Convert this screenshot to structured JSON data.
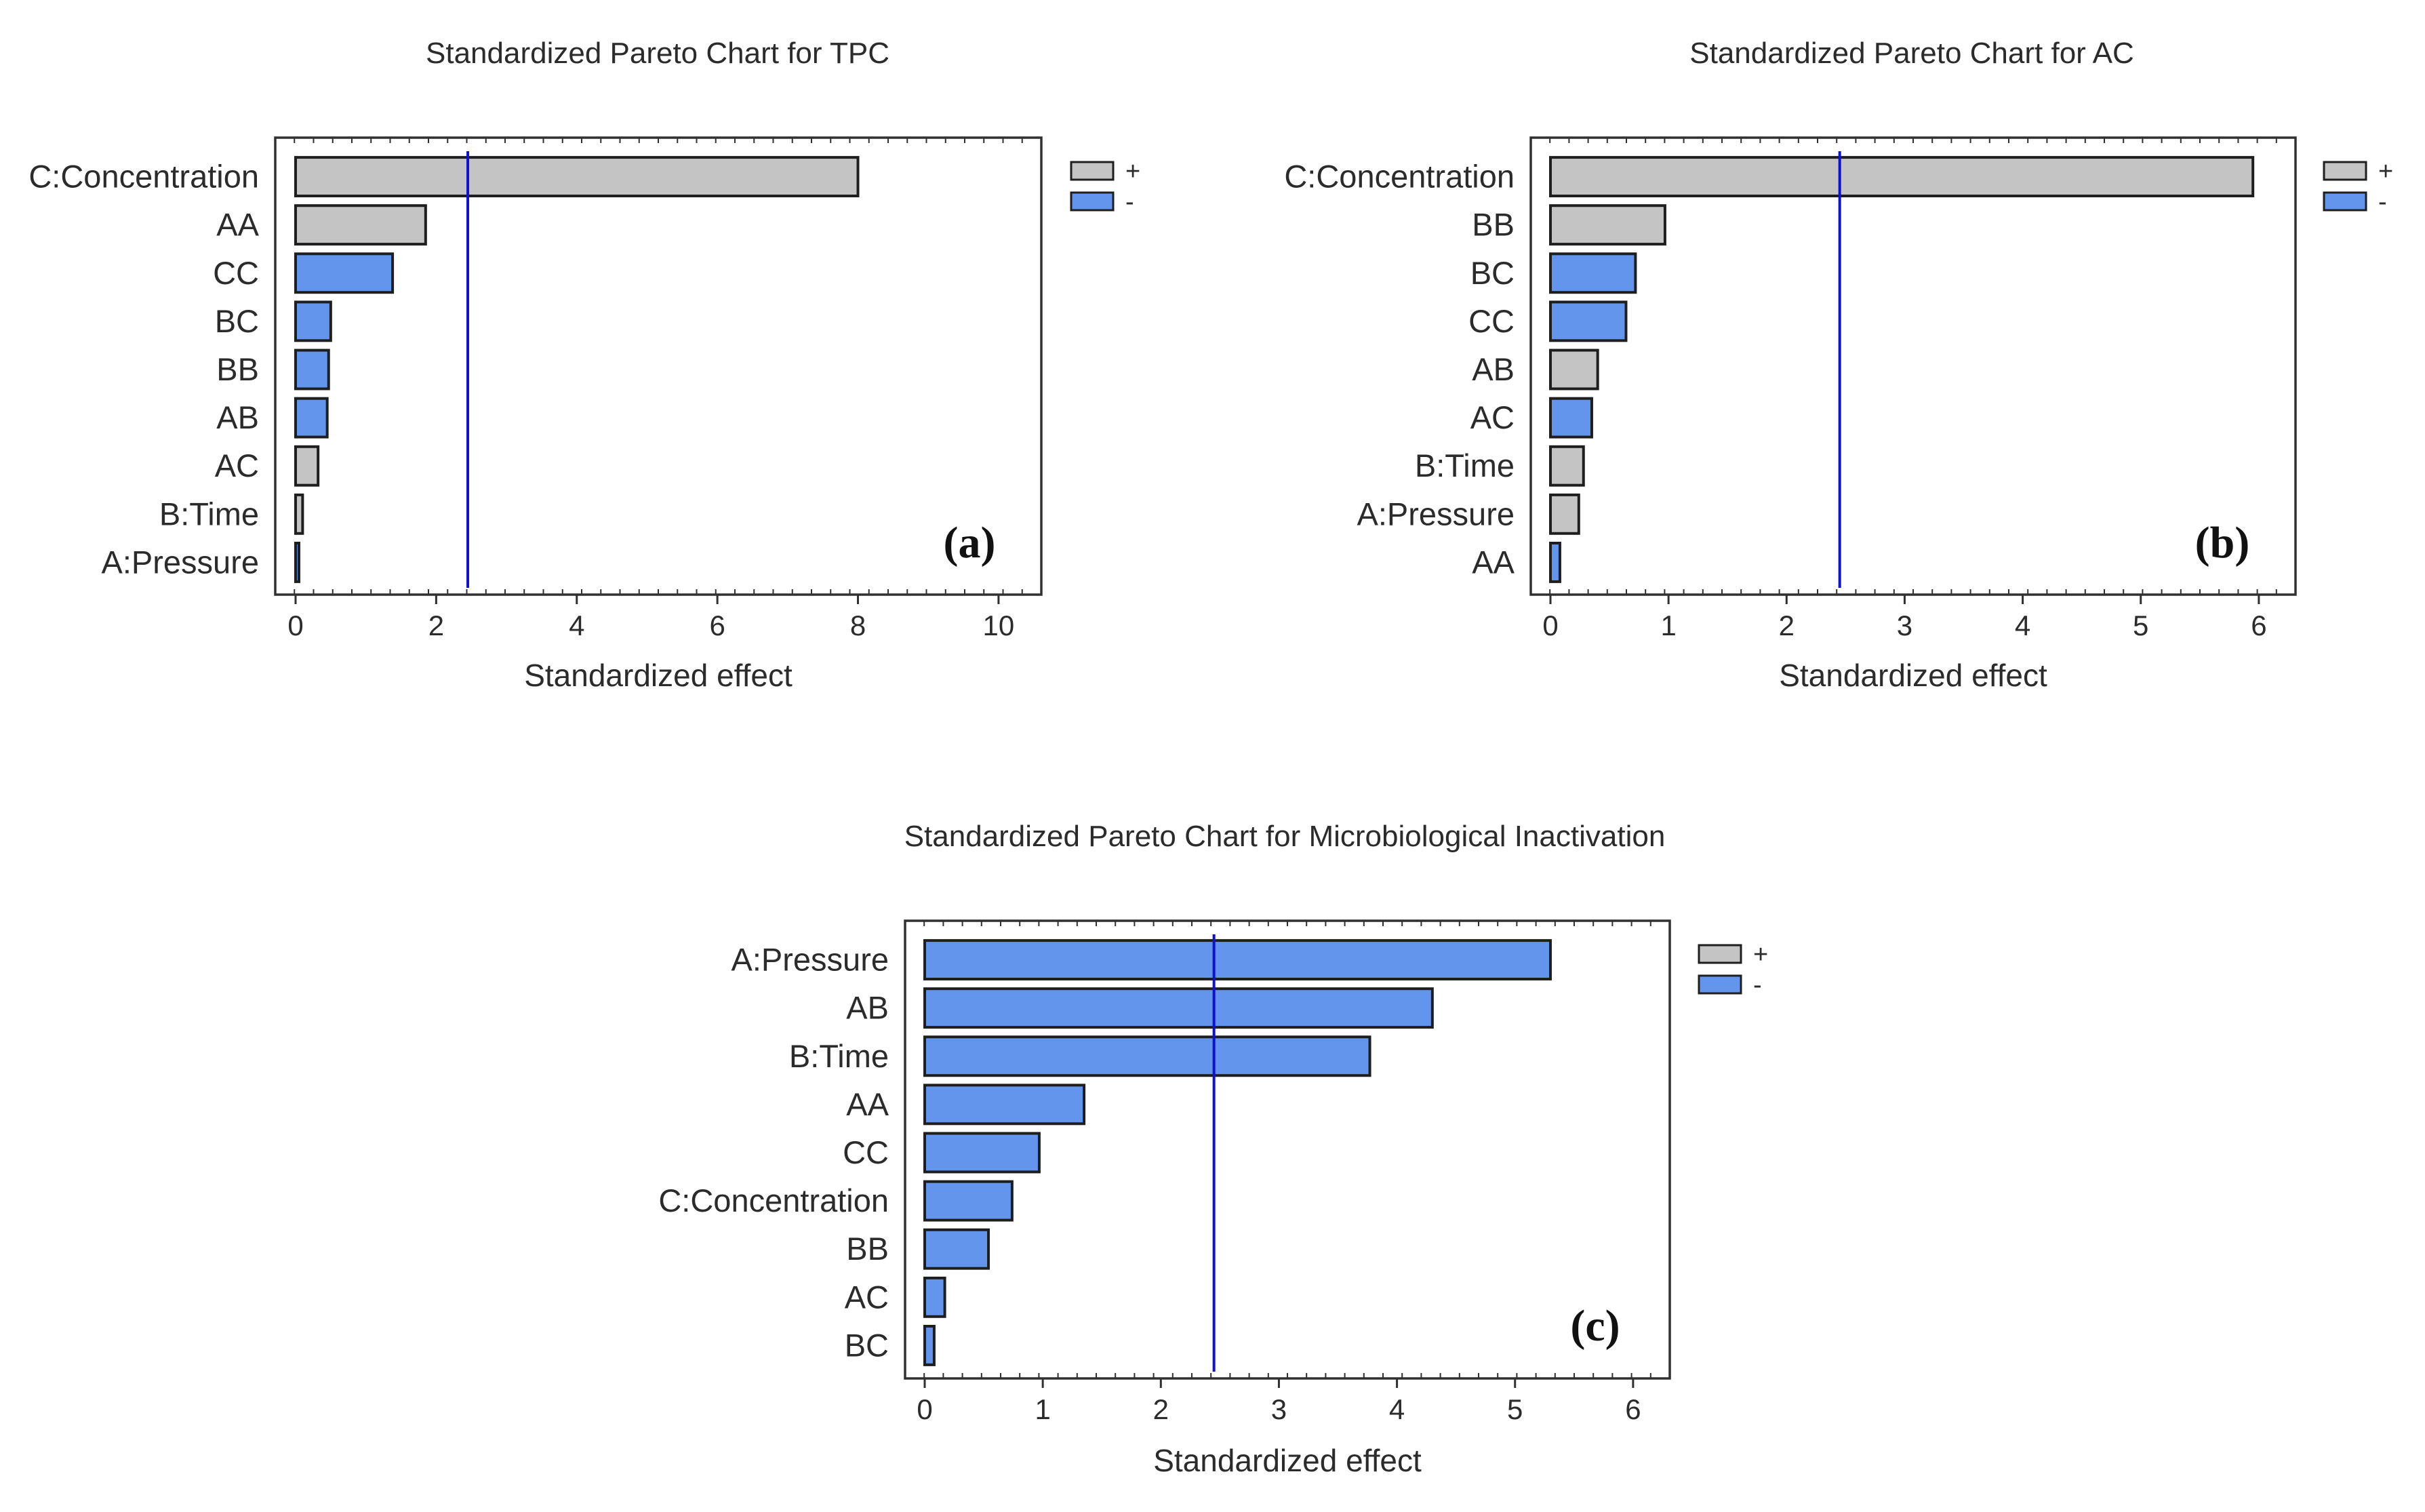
{
  "colors": {
    "positive": "#c4c4c4",
    "negative": "#6495ed",
    "reference_line": "#1010d0",
    "bar_stroke": "#1e1e1e",
    "frame": "#303030"
  },
  "chart_data": [
    {
      "type": "bar",
      "orientation": "horizontal",
      "title": "Standardized Pareto Chart for TPC",
      "panel_label": "(a)",
      "xlabel": "Standardized effect",
      "xlim": [
        0,
        10.3
      ],
      "xticks": [
        0,
        2,
        4,
        6,
        8,
        10
      ],
      "reference_value": 2.45,
      "categories": [
        "C:Concentration",
        "AA",
        "CC",
        "BC",
        "BB",
        "AB",
        "AC",
        "B:Time",
        "A:Pressure"
      ],
      "values": [
        8.0,
        1.85,
        1.38,
        0.5,
        0.47,
        0.45,
        0.32,
        0.1,
        0.04
      ],
      "signs": [
        "+",
        "+",
        "-",
        "-",
        "-",
        "-",
        "+",
        "+",
        "-"
      ],
      "legend": [
        {
          "label": "+",
          "sign": "+"
        },
        {
          "label": "-",
          "sign": "-"
        }
      ]
    },
    {
      "type": "bar",
      "orientation": "horizontal",
      "title": "Standardized Pareto Chart for AC",
      "panel_label": "(b)",
      "xlabel": "Standardized effect",
      "xlim": [
        0,
        6.15
      ],
      "xticks": [
        0,
        1,
        2,
        3,
        4,
        5,
        6
      ],
      "reference_value": 2.45,
      "categories": [
        "C:Concentration",
        "BB",
        "BC",
        "CC",
        "AB",
        "AC",
        "B:Time",
        "A:Pressure",
        "AA"
      ],
      "values": [
        5.95,
        0.97,
        0.72,
        0.64,
        0.4,
        0.35,
        0.28,
        0.24,
        0.08
      ],
      "signs": [
        "+",
        "+",
        "-",
        "-",
        "+",
        "-",
        "+",
        "+",
        "-"
      ],
      "legend": [
        {
          "label": "+",
          "sign": "+"
        },
        {
          "label": "-",
          "sign": "-"
        }
      ]
    },
    {
      "type": "bar",
      "orientation": "horizontal",
      "title": "Standardized Pareto Chart for Microbiological Inactivation",
      "panel_label": "(c)",
      "xlabel": "Standardized effect",
      "xlim": [
        0,
        6.15
      ],
      "xticks": [
        0,
        1,
        2,
        3,
        4,
        5,
        6
      ],
      "reference_value": 2.45,
      "categories": [
        "A:Pressure",
        "AB",
        "B:Time",
        "AA",
        "CC",
        "C:Concentration",
        "BB",
        "AC",
        "BC"
      ],
      "values": [
        5.3,
        4.3,
        3.77,
        1.35,
        0.97,
        0.74,
        0.54,
        0.17,
        0.08
      ],
      "signs": [
        "-",
        "-",
        "-",
        "-",
        "-",
        "-",
        "-",
        "-",
        "-"
      ],
      "legend": [
        {
          "label": "+",
          "sign": "+"
        },
        {
          "label": "-",
          "sign": "-"
        }
      ]
    }
  ]
}
